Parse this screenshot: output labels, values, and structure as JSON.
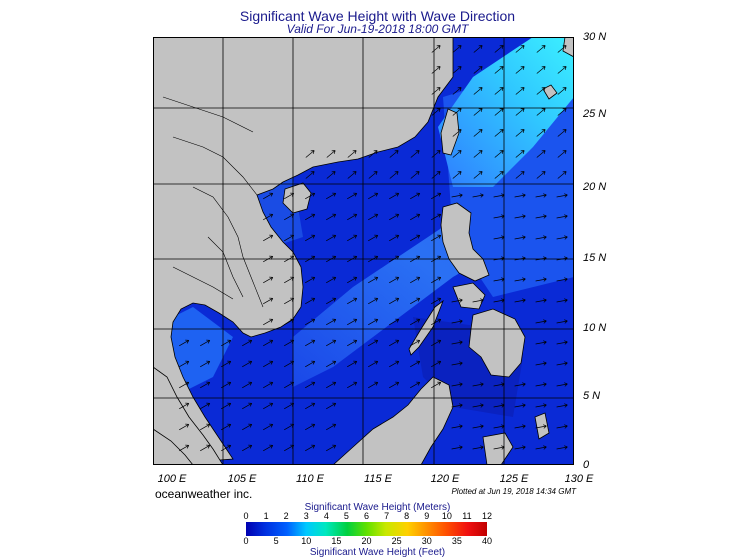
{
  "header": {
    "title": "Significant Wave Height with Wave Direction",
    "subtitle": "Valid For Jun-19-2018 18:00 GMT"
  },
  "axes": {
    "lon_labels": [
      "100 E",
      "105 E",
      "110 E",
      "115 E",
      "120 E",
      "125 E",
      "130 E"
    ],
    "lat_labels": [
      "30 N",
      "25 N",
      "20 N",
      "15 N",
      "10 N",
      "5 N",
      "0"
    ]
  },
  "footer": {
    "company": "oceanweather inc.",
    "plotted": "Plotted at Jun 19, 2018 14:34 GMT"
  },
  "colorbar": {
    "meters_title": "Significant Wave Height (Meters)",
    "meters_ticks": [
      "0",
      "1",
      "2",
      "3",
      "4",
      "5",
      "6",
      "7",
      "8",
      "9",
      "10",
      "11",
      "12"
    ],
    "feet_title": "Significant Wave Height (Feet)",
    "feet_ticks": [
      "0",
      "5",
      "10",
      "15",
      "20",
      "25",
      "30",
      "35",
      "40"
    ]
  },
  "colors": {
    "land": "#c2c2c2",
    "deep_blue": "#0a28d8",
    "mid_blue": "#1e5cf0",
    "light_blue": "#3c8cff",
    "cyan": "#30d8ff"
  }
}
